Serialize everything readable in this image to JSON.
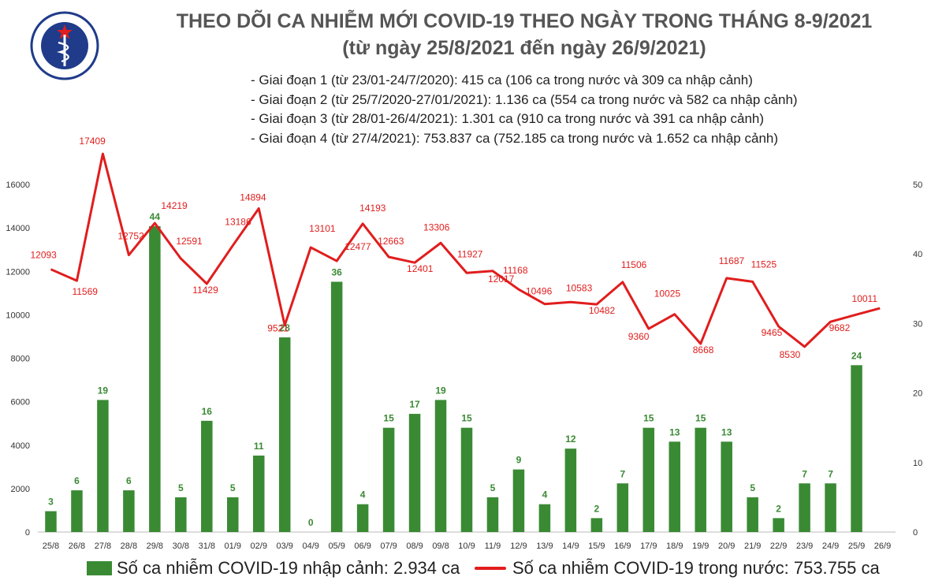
{
  "header": {
    "title_line1": "THEO DÕI CA NHIỄM MỚI COVID-19 THEO NGÀY TRONG THÁNG 8-9/2021",
    "title_line2": "(từ ngày 25/8/2021 đến ngày 26/9/2021)",
    "logo_text": "BỘ Y TẾ",
    "logo_subtext": "MINISTRY OF HEALTH"
  },
  "notes": [
    "- Giai đoạn 1 (từ 23/01-24/7/2020): 415 ca (106 ca trong nước và 309 ca nhập cảnh)",
    "- Giai đoạn 2 (từ 25/7/2020-27/01/2021): 1.136 ca (554 ca trong nước và 582 ca nhập cảnh)",
    "- Giai đoạn 3 (từ 28/01-26/4/2021): 1.301 ca (910 ca trong nước và 391 ca nhập cảnh)",
    "- Giai đoạn 4 (từ 27/4/2021): 753.837 ca (752.185 ca trong nước và 1.652 ca nhập cảnh)"
  ],
  "legend": {
    "bar_label": "Số ca nhiễm COVID-19 nhập cảnh: 2.934 ca",
    "line_label": "Số ca nhiễm COVID-19 trong nước: 753.755 ca"
  },
  "colors": {
    "bar": "#3a8a34",
    "bar_label": "#3a8a34",
    "line": "#e11d1d",
    "line_label": "#e11d1d",
    "axis_text": "#333333",
    "grid": "#d9d9d9"
  },
  "chart_data": {
    "type": "bar+line",
    "categories": [
      "25/8",
      "26/8",
      "27/8",
      "28/8",
      "29/8",
      "30/8",
      "31/8",
      "01/9",
      "02/9",
      "03/9",
      "04/9",
      "05/9",
      "06/9",
      "07/9",
      "08/9",
      "09/8",
      "10/9",
      "11/9",
      "12/9",
      "13/9",
      "14/9",
      "15/9",
      "16/9",
      "17/9",
      "18/9",
      "19/9",
      "20/9",
      "21/9",
      "22/9",
      "23/9",
      "24/9",
      "25/9",
      "26/9"
    ],
    "series": [
      {
        "name": "Số ca nhiễm COVID-19 nhập cảnh: 2.934 ca",
        "type": "bar",
        "axis": "right",
        "values": [
          3,
          6,
          19,
          6,
          44,
          5,
          16,
          5,
          11,
          28,
          0,
          36,
          4,
          15,
          17,
          19,
          15,
          5,
          9,
          4,
          12,
          2,
          7,
          15,
          13,
          15,
          13,
          5,
          2,
          7,
          7,
          24,
          null
        ],
        "labels": [
          "3",
          "6",
          "19",
          "6",
          "44",
          "5",
          "16",
          "5",
          "11",
          "28",
          "0",
          "36",
          "4",
          "15",
          "17",
          "19",
          "15",
          "5",
          "9",
          "4",
          "12",
          "2",
          "7",
          "15",
          "13",
          "15",
          "13",
          "5",
          "2",
          "7",
          "7",
          "24",
          ""
        ]
      },
      {
        "name": "Số ca nhiễm COVID-19 trong nước: 753.755 ca",
        "type": "line",
        "axis": "left",
        "values": [
          12093,
          11569,
          17409,
          12752,
          14219,
          12591,
          11429,
          13186,
          14894,
          9521,
          13101,
          12477,
          14193,
          12663,
          12401,
          13306,
          11927,
          12017,
          11168,
          10496,
          10583,
          10482,
          11506,
          9360,
          10025,
          8668,
          11687,
          11525,
          9465,
          8530,
          9682,
          10011,
          null
        ],
        "labels": [
          "12093",
          "11569",
          "17409",
          "12752",
          "14219",
          "12591",
          "11429",
          "13186",
          "14894",
          "9521",
          "13101",
          "12477",
          "14193",
          "12663",
          "12401",
          "13306",
          "11927",
          "12017",
          "11168",
          "10496",
          "10583",
          "10482",
          "11506",
          "9360",
          "10025",
          "8668",
          "11687",
          "11525",
          "9465",
          "8530",
          "9682",
          "10011",
          ""
        ]
      }
    ],
    "left_axis": {
      "min": 0,
      "max": 16000,
      "ticks": [
        "0",
        "2000",
        "4000",
        "6000",
        "8000",
        "10000",
        "12000",
        "14000",
        "16000"
      ]
    },
    "right_axis": {
      "min": 0,
      "max": 50,
      "ticks": [
        "0",
        "10",
        "20",
        "30",
        "40",
        "50"
      ]
    },
    "grid": false,
    "legend_position": "bottom"
  }
}
